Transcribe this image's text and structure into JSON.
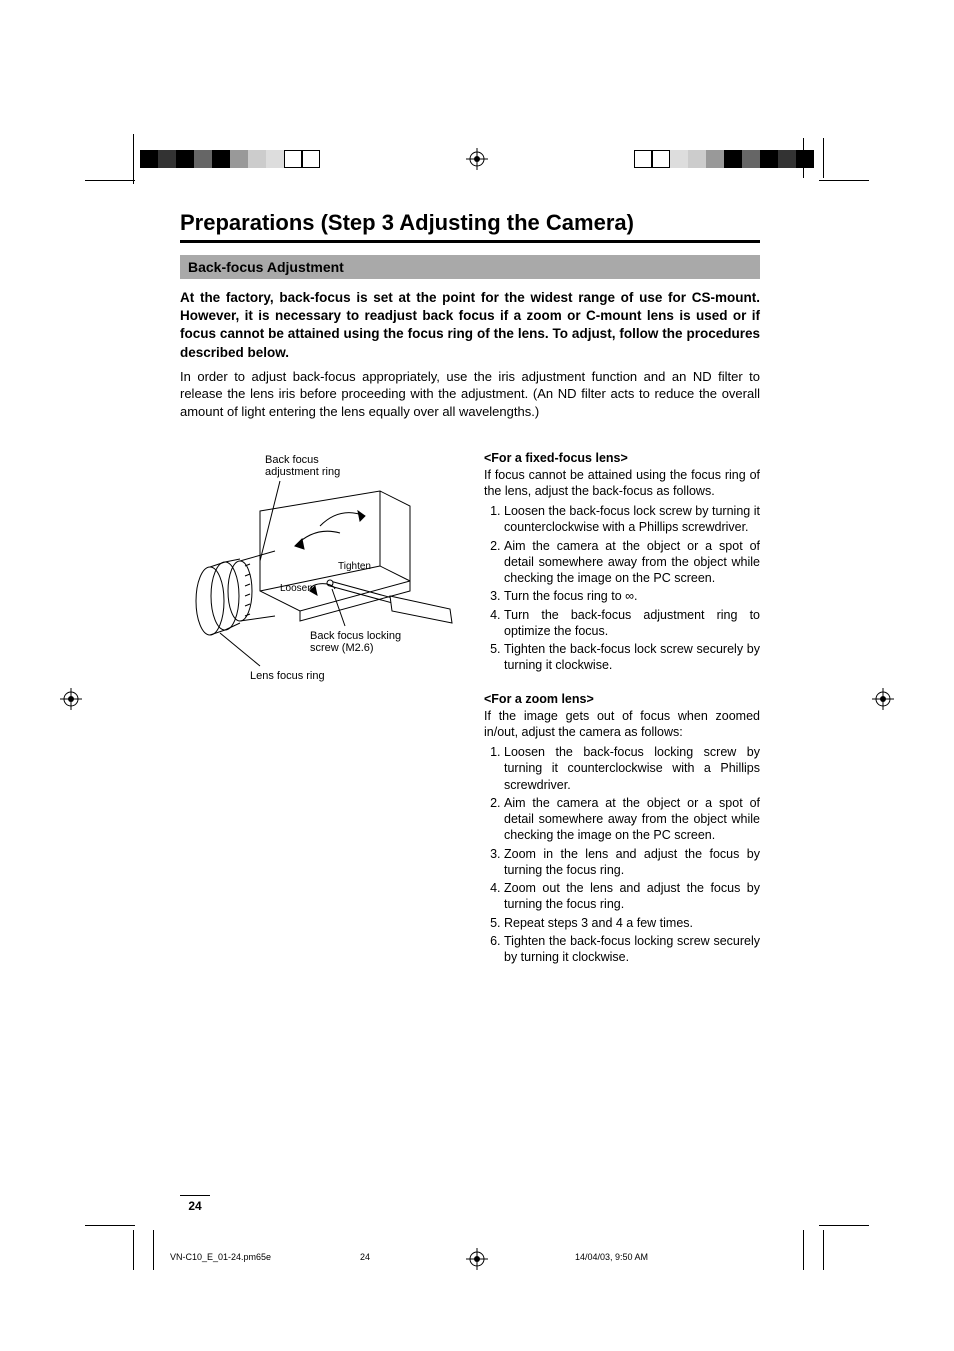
{
  "colors": {
    "bars": [
      "#000000",
      "#333333",
      "#000000",
      "#666666",
      "#000000",
      "#999999",
      "#cccccc",
      "#dddddd",
      "#ffffff",
      "#ffffff"
    ],
    "section_bar_bg": "#a9a9a9",
    "text": "#000000",
    "background": "#ffffff"
  },
  "title": "Preparations (Step 3 Adjusting the Camera)",
  "section": "Back-focus Adjustment",
  "intro_bold": "At the factory, back-focus is set at the point for the widest range of use for CS-mount. However, it is necessary to readjust back focus if a zoom or C-mount lens is used or if focus cannot be attained using the focus ring of the lens. To adjust, follow the procedures described below.",
  "intro_reg": "In order to adjust back-focus appropriately, use the iris adjustment function and an ND filter to release the  lens iris before proceeding with the adjustment. (An ND filter acts to reduce the overall amount of light entering the lens equally over all wavelengths.)",
  "diagram": {
    "label_ring": "Back focus\nadjustment ring",
    "label_tighten": "Tighten",
    "label_loosen": "Loosen",
    "label_screw": "Back focus locking\nscrew (M2.6)",
    "label_focus_ring": "Lens focus ring"
  },
  "fixed": {
    "heading": "<For a fixed-focus lens>",
    "intro": "If focus cannot be attained using the focus ring of the lens, adjust the back-focus as follows.",
    "steps": [
      "Loosen the back-focus lock screw by turning it counterclockwise with a Phillips screwdriver.",
      "Aim the camera at the object or a spot of detail somewhere away from the object while checking the image on the PC screen.",
      "Turn the focus ring to ∞.",
      "Turn the back-focus adjustment ring to optimize the focus.",
      "Tighten the back-focus lock screw securely by turning it clockwise."
    ]
  },
  "zoom": {
    "heading": "<For a zoom lens>",
    "intro": "If the image gets out of focus when zoomed in/out, adjust the camera as follows:",
    "steps": [
      "Loosen the back-focus locking screw by turning it counterclockwise with a Phillips screwdriver.",
      "Aim the camera at the object or a spot of detail somewhere away from the object while checking the image on the PC screen.",
      "Zoom in the lens and adjust the focus by turning the focus ring.",
      "Zoom out the lens and adjust the focus by turning the focus ring.",
      "Repeat steps 3 and 4 a few times.",
      "Tighten the back-focus locking screw securely by turning it clockwise."
    ]
  },
  "page_number": "24",
  "footer": {
    "file": "VN-C10_E_01-24.pm65e",
    "page": "24",
    "date": "14/04/03, 9:50 AM"
  }
}
